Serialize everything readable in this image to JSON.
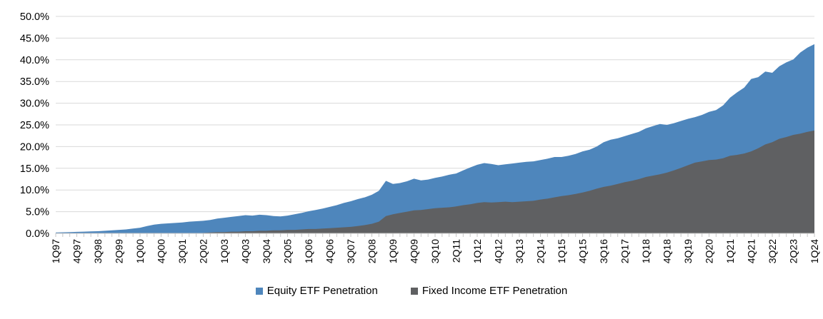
{
  "chart_data": {
    "type": "area",
    "stacking": "overlap",
    "title": "",
    "xlabel": "",
    "ylabel": "",
    "ylim": [
      0,
      50
    ],
    "y_tick_labels": [
      "0.0%",
      "5.0%",
      "10.0%",
      "15.0%",
      "20.0%",
      "25.0%",
      "30.0%",
      "35.0%",
      "40.0%",
      "45.0%",
      "50.0%"
    ],
    "grid": "horizontal",
    "legend_position": "bottom",
    "n_points": 109,
    "points_per_tick": 3,
    "x_range_start": "1Q97",
    "x_range_end": "1Q24",
    "x_tick_labels": [
      "1Q97",
      "4Q97",
      "3Q98",
      "2Q99",
      "1Q00",
      "4Q00",
      "3Q01",
      "2Q02",
      "1Q03",
      "4Q03",
      "3Q04",
      "2Q05",
      "1Q06",
      "4Q06",
      "3Q07",
      "2Q08",
      "1Q09",
      "4Q09",
      "3Q10",
      "2Q11",
      "1Q12",
      "4Q12",
      "3Q13",
      "2Q14",
      "1Q15",
      "4Q15",
      "3Q16",
      "2Q17",
      "1Q18",
      "4Q18",
      "3Q19",
      "2Q20",
      "1Q21",
      "4Q21",
      "3Q22",
      "2Q23",
      "1Q24"
    ],
    "series": [
      {
        "name": "Equity ETF Penetration",
        "color": "#4E86BC",
        "values": [
          0.2,
          0.25,
          0.3,
          0.35,
          0.4,
          0.45,
          0.5,
          0.6,
          0.7,
          0.8,
          0.9,
          1.1,
          1.3,
          1.7,
          2.0,
          2.2,
          2.3,
          2.4,
          2.5,
          2.7,
          2.8,
          2.9,
          3.1,
          3.4,
          3.6,
          3.8,
          4.0,
          4.2,
          4.1,
          4.3,
          4.2,
          4.0,
          3.9,
          4.1,
          4.4,
          4.7,
          5.1,
          5.4,
          5.7,
          6.1,
          6.5,
          7.0,
          7.4,
          7.9,
          8.3,
          8.9,
          9.8,
          12.1,
          11.4,
          11.6,
          12.0,
          12.6,
          12.2,
          12.4,
          12.8,
          13.1,
          13.5,
          13.8,
          14.5,
          15.2,
          15.8,
          16.2,
          16.0,
          15.7,
          15.9,
          16.1,
          16.3,
          16.5,
          16.6,
          16.9,
          17.2,
          17.6,
          17.6,
          17.9,
          18.3,
          18.9,
          19.3,
          20.0,
          21.0,
          21.6,
          21.9,
          22.4,
          22.9,
          23.4,
          24.2,
          24.7,
          25.2,
          25.0,
          25.4,
          25.9,
          26.4,
          26.8,
          27.3,
          28.0,
          28.4,
          29.5,
          31.3,
          32.5,
          33.6,
          35.6,
          36.0,
          37.3,
          37.0,
          38.5,
          39.4,
          40.1,
          41.7,
          42.8,
          43.6
        ]
      },
      {
        "name": "Fixed Income ETF Penetration",
        "color": "#5F6062",
        "values": [
          0,
          0,
          0,
          0,
          0,
          0,
          0,
          0,
          0,
          0,
          0,
          0,
          0,
          0,
          0,
          0,
          0,
          0,
          0,
          0,
          0,
          0.1,
          0.2,
          0.3,
          0.3,
          0.4,
          0.4,
          0.5,
          0.5,
          0.6,
          0.6,
          0.7,
          0.7,
          0.8,
          0.8,
          0.9,
          1.0,
          1.0,
          1.1,
          1.2,
          1.3,
          1.4,
          1.5,
          1.7,
          1.9,
          2.2,
          2.7,
          4.0,
          4.4,
          4.7,
          5.0,
          5.3,
          5.4,
          5.6,
          5.8,
          5.9,
          6.0,
          6.2,
          6.5,
          6.7,
          7.0,
          7.2,
          7.1,
          7.2,
          7.3,
          7.2,
          7.3,
          7.4,
          7.5,
          7.8,
          8.0,
          8.3,
          8.6,
          8.8,
          9.1,
          9.4,
          9.8,
          10.3,
          10.7,
          11.0,
          11.4,
          11.8,
          12.1,
          12.5,
          13.0,
          13.3,
          13.6,
          14.0,
          14.5,
          15.1,
          15.7,
          16.3,
          16.6,
          16.9,
          17.0,
          17.3,
          17.9,
          18.1,
          18.4,
          18.9,
          19.6,
          20.5,
          21.0,
          21.8,
          22.2,
          22.7,
          23.0,
          23.4,
          23.7
        ]
      }
    ],
    "colors": {
      "grid": "#D9D9D9",
      "axis": "#C6C6C6",
      "text": "#000000",
      "background": "#FFFFFF"
    }
  }
}
